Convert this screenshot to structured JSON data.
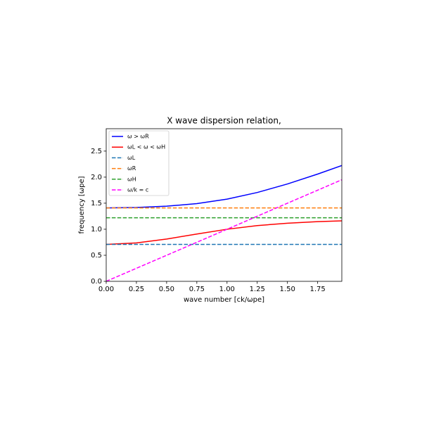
{
  "chart_data": {
    "type": "line",
    "title": "X wave dispersion relation,",
    "xlabel": "wave number [ck/ωpe]",
    "ylabel": "frequency [ωpe]",
    "x": [
      0,
      0.25,
      0.5,
      0.75,
      1.0,
      1.25,
      1.5,
      1.75,
      1.95
    ],
    "series": [
      {
        "name": "ω > ωR",
        "color": "#0000ff",
        "linestyle": "solid",
        "values": [
          1.4095,
          1.4171,
          1.4423,
          1.4924,
          1.578,
          1.7053,
          1.8693,
          2.0593,
          2.2236
        ]
      },
      {
        "name": "ωL < ω < ωH",
        "color": "#ff0000",
        "linestyle": "solid",
        "values": [
          0.7095,
          0.7378,
          0.8123,
          0.9085,
          1.0,
          1.0698,
          1.116,
          1.1454,
          1.1611
        ]
      },
      {
        "name": "ωL",
        "color": "#1f77b4",
        "linestyle": "dashed",
        "values": [
          0.7095,
          0.7095,
          0.7095,
          0.7095,
          0.7095,
          0.7095,
          0.7095,
          0.7095,
          0.7095
        ]
      },
      {
        "name": "ωR",
        "color": "#ff7f0e",
        "linestyle": "dashed",
        "values": [
          1.4095,
          1.4095,
          1.4095,
          1.4095,
          1.4095,
          1.4095,
          1.4095,
          1.4095,
          1.4095
        ]
      },
      {
        "name": "ωH",
        "color": "#2ca02c",
        "linestyle": "dashed",
        "values": [
          1.2207,
          1.2207,
          1.2207,
          1.2207,
          1.2207,
          1.2207,
          1.2207,
          1.2207,
          1.2207
        ]
      },
      {
        "name": "ω/k = c",
        "color": "#ff00ff",
        "linestyle": "dashed",
        "values": [
          0,
          0.25,
          0.5,
          0.75,
          1.0,
          1.25,
          1.5,
          1.75,
          1.95
        ]
      }
    ],
    "xlim": [
      0,
      1.95
    ],
    "ylim": [
      0,
      2.93
    ],
    "xticks": [
      {
        "value": 0,
        "label": "0.00"
      },
      0.25,
      {
        "value": 0.5,
        "label": "0.50"
      },
      0.75,
      {
        "value": 1,
        "label": "1.00"
      },
      1.25,
      {
        "value": 1.5,
        "label": "1.50"
      },
      1.75
    ],
    "yticks": [
      {
        "value": 0,
        "label": "0.0"
      },
      0.5,
      {
        "value": 1,
        "label": "1.0"
      },
      1.5,
      {
        "value": 2,
        "label": "2.0"
      },
      2.5
    ],
    "grid": false,
    "legend": "upper left"
  }
}
